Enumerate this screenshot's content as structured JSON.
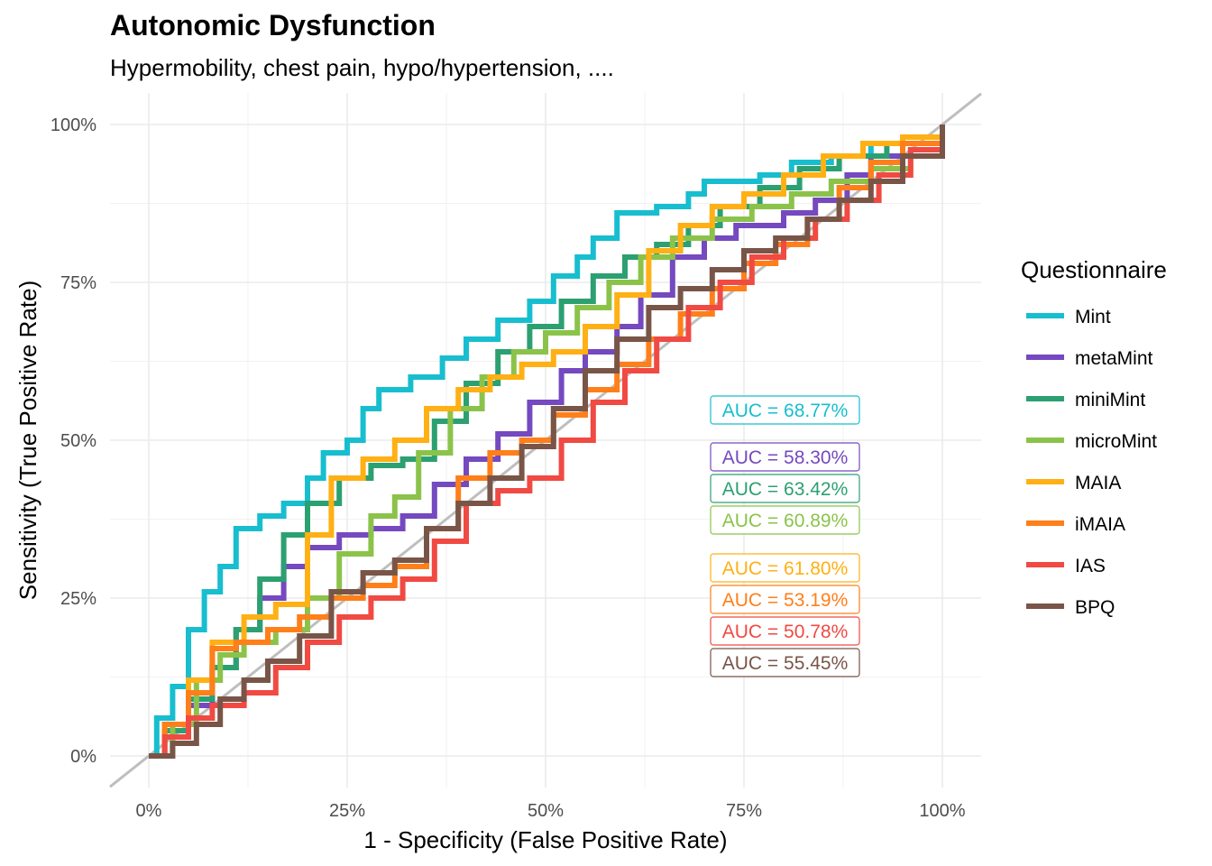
{
  "chart_data": {
    "type": "line",
    "title": "Autonomic Dysfunction",
    "subtitle": "Hypermobility, chest pain, hypo/hypertension, ....",
    "xlabel": "1 - Specificity (False Positive Rate)",
    "ylabel": "Sensitivity (True Positive Rate)",
    "xlim": [
      0,
      1
    ],
    "ylim": [
      0,
      1
    ],
    "x_ticks": [
      "0%",
      "25%",
      "50%",
      "75%",
      "100%"
    ],
    "y_ticks": [
      "0%",
      "25%",
      "50%",
      "75%",
      "100%"
    ],
    "grid": true,
    "legend_title": "Questionnaire",
    "legend_position": "right",
    "reference_line": {
      "from": [
        0,
        0
      ],
      "to": [
        1,
        1
      ],
      "color": "#bebebe"
    },
    "series": [
      {
        "name": "Mint",
        "color": "#17becf",
        "auc": "AUC = 68.77%",
        "points": [
          [
            0,
            0
          ],
          [
            0.01,
            0.06
          ],
          [
            0.03,
            0.11
          ],
          [
            0.05,
            0.2
          ],
          [
            0.07,
            0.26
          ],
          [
            0.09,
            0.3
          ],
          [
            0.11,
            0.36
          ],
          [
            0.14,
            0.38
          ],
          [
            0.17,
            0.4
          ],
          [
            0.2,
            0.44
          ],
          [
            0.22,
            0.48
          ],
          [
            0.25,
            0.5
          ],
          [
            0.27,
            0.55
          ],
          [
            0.29,
            0.58
          ],
          [
            0.33,
            0.6
          ],
          [
            0.37,
            0.63
          ],
          [
            0.4,
            0.66
          ],
          [
            0.44,
            0.69
          ],
          [
            0.48,
            0.72
          ],
          [
            0.51,
            0.76
          ],
          [
            0.54,
            0.79
          ],
          [
            0.56,
            0.82
          ],
          [
            0.59,
            0.86
          ],
          [
            0.64,
            0.87
          ],
          [
            0.68,
            0.89
          ],
          [
            0.7,
            0.91
          ],
          [
            0.77,
            0.92
          ],
          [
            0.81,
            0.94
          ],
          [
            0.86,
            0.95
          ],
          [
            0.91,
            0.97
          ],
          [
            0.95,
            0.98
          ],
          [
            1,
            1
          ]
        ]
      },
      {
        "name": "metaMint",
        "color": "#7549bf",
        "auc": "AUC = 58.30%",
        "points": [
          [
            0,
            0
          ],
          [
            0.02,
            0.04
          ],
          [
            0.05,
            0.08
          ],
          [
            0.08,
            0.14
          ],
          [
            0.11,
            0.2
          ],
          [
            0.14,
            0.25
          ],
          [
            0.17,
            0.3
          ],
          [
            0.2,
            0.33
          ],
          [
            0.24,
            0.35
          ],
          [
            0.28,
            0.36
          ],
          [
            0.32,
            0.38
          ],
          [
            0.36,
            0.43
          ],
          [
            0.4,
            0.47
          ],
          [
            0.44,
            0.51
          ],
          [
            0.48,
            0.56
          ],
          [
            0.52,
            0.61
          ],
          [
            0.55,
            0.64
          ],
          [
            0.59,
            0.68
          ],
          [
            0.62,
            0.73
          ],
          [
            0.66,
            0.79
          ],
          [
            0.7,
            0.82
          ],
          [
            0.74,
            0.84
          ],
          [
            0.8,
            0.86
          ],
          [
            0.84,
            0.88
          ],
          [
            0.88,
            0.92
          ],
          [
            0.91,
            0.95
          ],
          [
            0.95,
            0.97
          ],
          [
            1,
            1
          ]
        ]
      },
      {
        "name": "miniMint",
        "color": "#2ca071",
        "auc": "AUC = 63.42%",
        "points": [
          [
            0,
            0
          ],
          [
            0.02,
            0.04
          ],
          [
            0.05,
            0.09
          ],
          [
            0.08,
            0.14
          ],
          [
            0.11,
            0.2
          ],
          [
            0.14,
            0.28
          ],
          [
            0.17,
            0.35
          ],
          [
            0.2,
            0.4
          ],
          [
            0.24,
            0.44
          ],
          [
            0.28,
            0.46
          ],
          [
            0.32,
            0.47
          ],
          [
            0.36,
            0.53
          ],
          [
            0.4,
            0.59
          ],
          [
            0.44,
            0.64
          ],
          [
            0.48,
            0.68
          ],
          [
            0.52,
            0.72
          ],
          [
            0.56,
            0.76
          ],
          [
            0.6,
            0.79
          ],
          [
            0.64,
            0.81
          ],
          [
            0.68,
            0.84
          ],
          [
            0.72,
            0.87
          ],
          [
            0.77,
            0.9
          ],
          [
            0.82,
            0.93
          ],
          [
            0.87,
            0.95
          ],
          [
            0.93,
            0.97
          ],
          [
            1,
            1
          ]
        ]
      },
      {
        "name": "microMint",
        "color": "#8bc34a",
        "auc": "AUC = 60.89%",
        "points": [
          [
            0,
            0
          ],
          [
            0.03,
            0.05
          ],
          [
            0.06,
            0.12
          ],
          [
            0.09,
            0.16
          ],
          [
            0.12,
            0.18
          ],
          [
            0.16,
            0.2
          ],
          [
            0.2,
            0.25
          ],
          [
            0.24,
            0.32
          ],
          [
            0.28,
            0.38
          ],
          [
            0.31,
            0.41
          ],
          [
            0.34,
            0.48
          ],
          [
            0.38,
            0.55
          ],
          [
            0.42,
            0.6
          ],
          [
            0.46,
            0.64
          ],
          [
            0.5,
            0.67
          ],
          [
            0.54,
            0.71
          ],
          [
            0.58,
            0.75
          ],
          [
            0.62,
            0.79
          ],
          [
            0.66,
            0.82
          ],
          [
            0.71,
            0.85
          ],
          [
            0.76,
            0.87
          ],
          [
            0.81,
            0.89
          ],
          [
            0.86,
            0.91
          ],
          [
            0.91,
            0.93
          ],
          [
            0.96,
            0.96
          ],
          [
            1,
            1
          ]
        ]
      },
      {
        "name": "MAIA",
        "color": "#ffb014",
        "auc": "AUC = 61.80%",
        "points": [
          [
            0,
            0
          ],
          [
            0.02,
            0.05
          ],
          [
            0.05,
            0.12
          ],
          [
            0.08,
            0.18
          ],
          [
            0.12,
            0.22
          ],
          [
            0.16,
            0.24
          ],
          [
            0.2,
            0.35
          ],
          [
            0.23,
            0.44
          ],
          [
            0.27,
            0.47
          ],
          [
            0.31,
            0.5
          ],
          [
            0.35,
            0.55
          ],
          [
            0.39,
            0.58
          ],
          [
            0.43,
            0.6
          ],
          [
            0.47,
            0.62
          ],
          [
            0.51,
            0.64
          ],
          [
            0.55,
            0.68
          ],
          [
            0.59,
            0.73
          ],
          [
            0.63,
            0.8
          ],
          [
            0.67,
            0.84
          ],
          [
            0.71,
            0.87
          ],
          [
            0.75,
            0.89
          ],
          [
            0.8,
            0.92
          ],
          [
            0.85,
            0.95
          ],
          [
            0.9,
            0.97
          ],
          [
            0.95,
            0.98
          ],
          [
            1,
            1
          ]
        ]
      },
      {
        "name": "iMAIA",
        "color": "#ff7f1a",
        "auc": "AUC = 53.19%",
        "points": [
          [
            0,
            0
          ],
          [
            0.02,
            0.05
          ],
          [
            0.05,
            0.1
          ],
          [
            0.08,
            0.17
          ],
          [
            0.11,
            0.18
          ],
          [
            0.15,
            0.2
          ],
          [
            0.19,
            0.22
          ],
          [
            0.23,
            0.25
          ],
          [
            0.27,
            0.27
          ],
          [
            0.31,
            0.3
          ],
          [
            0.35,
            0.36
          ],
          [
            0.39,
            0.44
          ],
          [
            0.43,
            0.48
          ],
          [
            0.47,
            0.5
          ],
          [
            0.51,
            0.54
          ],
          [
            0.55,
            0.58
          ],
          [
            0.59,
            0.62
          ],
          [
            0.63,
            0.66
          ],
          [
            0.67,
            0.7
          ],
          [
            0.71,
            0.74
          ],
          [
            0.75,
            0.78
          ],
          [
            0.79,
            0.81
          ],
          [
            0.83,
            0.85
          ],
          [
            0.87,
            0.9
          ],
          [
            0.91,
            0.94
          ],
          [
            0.95,
            0.97
          ],
          [
            1,
            1
          ]
        ]
      },
      {
        "name": "IAS",
        "color": "#f04a43",
        "auc": "AUC = 50.78%",
        "points": [
          [
            0,
            0
          ],
          [
            0.02,
            0.03
          ],
          [
            0.05,
            0.06
          ],
          [
            0.08,
            0.08
          ],
          [
            0.12,
            0.1
          ],
          [
            0.16,
            0.14
          ],
          [
            0.2,
            0.18
          ],
          [
            0.24,
            0.22
          ],
          [
            0.28,
            0.25
          ],
          [
            0.32,
            0.28
          ],
          [
            0.36,
            0.34
          ],
          [
            0.4,
            0.4
          ],
          [
            0.44,
            0.42
          ],
          [
            0.48,
            0.44
          ],
          [
            0.52,
            0.5
          ],
          [
            0.56,
            0.56
          ],
          [
            0.6,
            0.61
          ],
          [
            0.64,
            0.66
          ],
          [
            0.68,
            0.71
          ],
          [
            0.72,
            0.75
          ],
          [
            0.76,
            0.79
          ],
          [
            0.8,
            0.82
          ],
          [
            0.84,
            0.85
          ],
          [
            0.88,
            0.88
          ],
          [
            0.92,
            0.92
          ],
          [
            0.96,
            0.96
          ],
          [
            1,
            1
          ]
        ]
      },
      {
        "name": "BPQ",
        "color": "#795548",
        "auc": "AUC = 55.45%",
        "points": [
          [
            0,
            0
          ],
          [
            0.03,
            0.02
          ],
          [
            0.06,
            0.05
          ],
          [
            0.09,
            0.09
          ],
          [
            0.12,
            0.12
          ],
          [
            0.15,
            0.15
          ],
          [
            0.19,
            0.19
          ],
          [
            0.23,
            0.26
          ],
          [
            0.27,
            0.29
          ],
          [
            0.31,
            0.31
          ],
          [
            0.35,
            0.36
          ],
          [
            0.39,
            0.4
          ],
          [
            0.43,
            0.44
          ],
          [
            0.47,
            0.49
          ],
          [
            0.51,
            0.55
          ],
          [
            0.55,
            0.61
          ],
          [
            0.59,
            0.66
          ],
          [
            0.63,
            0.71
          ],
          [
            0.67,
            0.74
          ],
          [
            0.71,
            0.77
          ],
          [
            0.75,
            0.8
          ],
          [
            0.79,
            0.82
          ],
          [
            0.83,
            0.85
          ],
          [
            0.87,
            0.88
          ],
          [
            0.91,
            0.91
          ],
          [
            0.95,
            0.95
          ],
          [
            1,
            1
          ]
        ]
      }
    ]
  }
}
